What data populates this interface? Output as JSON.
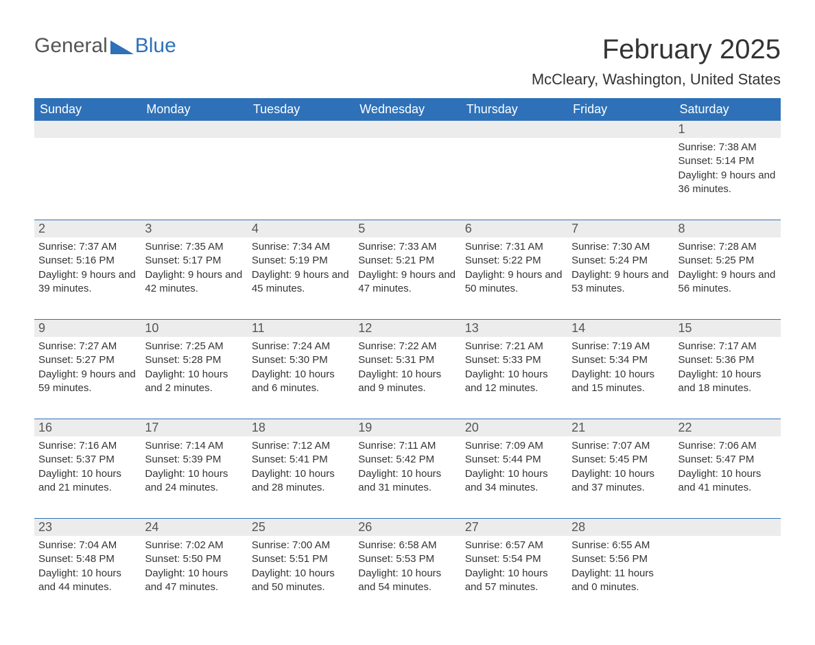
{
  "brand": {
    "word1": "General",
    "word2": "Blue"
  },
  "title": "February 2025",
  "location": "McCleary, Washington, United States",
  "colors": {
    "header_bg": "#2e71b8",
    "header_fg": "#ffffff",
    "daynum_bg": "#ececec",
    "rule": "#2e71b8",
    "text": "#333333",
    "brand_gray": "#555555",
    "brand_blue": "#2e71b8",
    "page_bg": "#ffffff"
  },
  "fonts": {
    "title_size_pt": 30,
    "location_size_pt": 17,
    "dayhdr_size_pt": 14,
    "daynum_size_pt": 14,
    "body_size_pt": 11
  },
  "weekdays": [
    "Sunday",
    "Monday",
    "Tuesday",
    "Wednesday",
    "Thursday",
    "Friday",
    "Saturday"
  ],
  "labels": {
    "sunrise": "Sunrise:",
    "sunset": "Sunset:",
    "daylight": "Daylight:"
  },
  "weeks": [
    [
      null,
      null,
      null,
      null,
      null,
      null,
      {
        "n": "1",
        "sunrise": "7:38 AM",
        "sunset": "5:14 PM",
        "daylight": "9 hours and 36 minutes."
      }
    ],
    [
      {
        "n": "2",
        "sunrise": "7:37 AM",
        "sunset": "5:16 PM",
        "daylight": "9 hours and 39 minutes."
      },
      {
        "n": "3",
        "sunrise": "7:35 AM",
        "sunset": "5:17 PM",
        "daylight": "9 hours and 42 minutes."
      },
      {
        "n": "4",
        "sunrise": "7:34 AM",
        "sunset": "5:19 PM",
        "daylight": "9 hours and 45 minutes."
      },
      {
        "n": "5",
        "sunrise": "7:33 AM",
        "sunset": "5:21 PM",
        "daylight": "9 hours and 47 minutes."
      },
      {
        "n": "6",
        "sunrise": "7:31 AM",
        "sunset": "5:22 PM",
        "daylight": "9 hours and 50 minutes."
      },
      {
        "n": "7",
        "sunrise": "7:30 AM",
        "sunset": "5:24 PM",
        "daylight": "9 hours and 53 minutes."
      },
      {
        "n": "8",
        "sunrise": "7:28 AM",
        "sunset": "5:25 PM",
        "daylight": "9 hours and 56 minutes."
      }
    ],
    [
      {
        "n": "9",
        "sunrise": "7:27 AM",
        "sunset": "5:27 PM",
        "daylight": "9 hours and 59 minutes."
      },
      {
        "n": "10",
        "sunrise": "7:25 AM",
        "sunset": "5:28 PM",
        "daylight": "10 hours and 2 minutes."
      },
      {
        "n": "11",
        "sunrise": "7:24 AM",
        "sunset": "5:30 PM",
        "daylight": "10 hours and 6 minutes."
      },
      {
        "n": "12",
        "sunrise": "7:22 AM",
        "sunset": "5:31 PM",
        "daylight": "10 hours and 9 minutes."
      },
      {
        "n": "13",
        "sunrise": "7:21 AM",
        "sunset": "5:33 PM",
        "daylight": "10 hours and 12 minutes."
      },
      {
        "n": "14",
        "sunrise": "7:19 AM",
        "sunset": "5:34 PM",
        "daylight": "10 hours and 15 minutes."
      },
      {
        "n": "15",
        "sunrise": "7:17 AM",
        "sunset": "5:36 PM",
        "daylight": "10 hours and 18 minutes."
      }
    ],
    [
      {
        "n": "16",
        "sunrise": "7:16 AM",
        "sunset": "5:37 PM",
        "daylight": "10 hours and 21 minutes."
      },
      {
        "n": "17",
        "sunrise": "7:14 AM",
        "sunset": "5:39 PM",
        "daylight": "10 hours and 24 minutes."
      },
      {
        "n": "18",
        "sunrise": "7:12 AM",
        "sunset": "5:41 PM",
        "daylight": "10 hours and 28 minutes."
      },
      {
        "n": "19",
        "sunrise": "7:11 AM",
        "sunset": "5:42 PM",
        "daylight": "10 hours and 31 minutes."
      },
      {
        "n": "20",
        "sunrise": "7:09 AM",
        "sunset": "5:44 PM",
        "daylight": "10 hours and 34 minutes."
      },
      {
        "n": "21",
        "sunrise": "7:07 AM",
        "sunset": "5:45 PM",
        "daylight": "10 hours and 37 minutes."
      },
      {
        "n": "22",
        "sunrise": "7:06 AM",
        "sunset": "5:47 PM",
        "daylight": "10 hours and 41 minutes."
      }
    ],
    [
      {
        "n": "23",
        "sunrise": "7:04 AM",
        "sunset": "5:48 PM",
        "daylight": "10 hours and 44 minutes."
      },
      {
        "n": "24",
        "sunrise": "7:02 AM",
        "sunset": "5:50 PM",
        "daylight": "10 hours and 47 minutes."
      },
      {
        "n": "25",
        "sunrise": "7:00 AM",
        "sunset": "5:51 PM",
        "daylight": "10 hours and 50 minutes."
      },
      {
        "n": "26",
        "sunrise": "6:58 AM",
        "sunset": "5:53 PM",
        "daylight": "10 hours and 54 minutes."
      },
      {
        "n": "27",
        "sunrise": "6:57 AM",
        "sunset": "5:54 PM",
        "daylight": "10 hours and 57 minutes."
      },
      {
        "n": "28",
        "sunrise": "6:55 AM",
        "sunset": "5:56 PM",
        "daylight": "11 hours and 0 minutes."
      },
      null
    ]
  ]
}
